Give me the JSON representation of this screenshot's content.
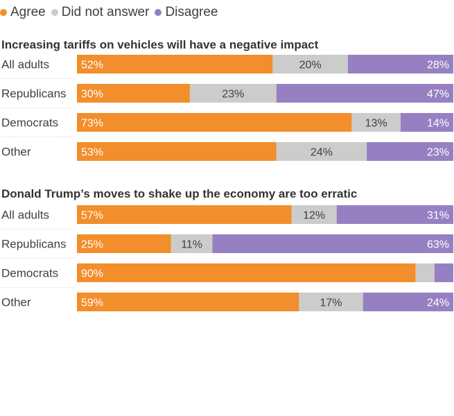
{
  "legend": [
    {
      "label": "Agree",
      "color": "#f28e2b"
    },
    {
      "label": "Did not answer",
      "color": "#cccccc"
    },
    {
      "label": "Disagree",
      "color": "#9680c2"
    }
  ],
  "chart_data": [
    {
      "type": "bar",
      "orientation": "horizontal",
      "stacked": true,
      "title": "Increasing tariffs on vehicles will have a negative impact",
      "categories": [
        "All adults",
        "Republicans",
        "Democrats",
        "Other"
      ],
      "series": [
        {
          "name": "Agree",
          "values": [
            52,
            30,
            73,
            53
          ],
          "labels": [
            "52%",
            "30%",
            "73%",
            "53%"
          ],
          "color": "#f28e2b"
        },
        {
          "name": "Did not answer",
          "values": [
            20,
            23,
            13,
            24
          ],
          "labels": [
            "20%",
            "23%",
            "13%",
            "24%"
          ],
          "color": "#cccccc"
        },
        {
          "name": "Disagree",
          "values": [
            28,
            47,
            14,
            23
          ],
          "labels": [
            "28%",
            "47%",
            "14%",
            "23%"
          ],
          "color": "#9680c2"
        }
      ],
      "xlim": [
        0,
        100
      ]
    },
    {
      "type": "bar",
      "orientation": "horizontal",
      "stacked": true,
      "title": "Donald Trump’s moves to shake up the economy are too erratic",
      "categories": [
        "All adults",
        "Republicans",
        "Democrats",
        "Other"
      ],
      "series": [
        {
          "name": "Agree",
          "values": [
            57,
            25,
            90,
            59
          ],
          "labels": [
            "57%",
            "25%",
            "90%",
            "59%"
          ],
          "color": "#f28e2b"
        },
        {
          "name": "Did not answer",
          "values": [
            12,
            11,
            5,
            17
          ],
          "labels": [
            "12%",
            "11%",
            "",
            "17%"
          ],
          "color": "#cccccc"
        },
        {
          "name": "Disagree",
          "values": [
            31,
            63,
            5,
            24
          ],
          "labels": [
            "31%",
            "63%",
            "",
            "24%"
          ],
          "color": "#9680c2"
        }
      ],
      "xlim": [
        0,
        100
      ]
    }
  ]
}
